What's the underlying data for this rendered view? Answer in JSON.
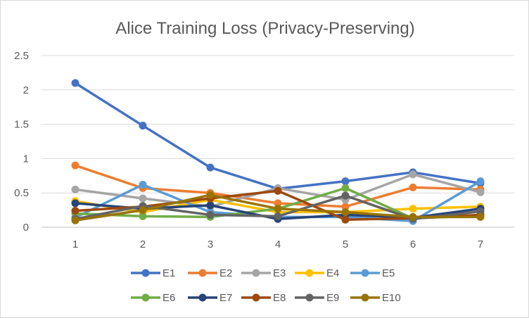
{
  "chart_data": {
    "type": "line",
    "title": "Alice Training Loss (Privacy-Preserving)",
    "xlabel": "",
    "ylabel": "",
    "x": [
      1,
      2,
      3,
      4,
      5,
      6,
      7
    ],
    "ylim": [
      0,
      2.5
    ],
    "yticks": [
      "0",
      "0.5",
      "1",
      "1.5",
      "2",
      "2.5"
    ],
    "grid": true,
    "legend_position": "bottom",
    "series": [
      {
        "name": "E1",
        "color": "#4472C4",
        "values": [
          2.1,
          1.48,
          0.87,
          0.56,
          0.67,
          0.8,
          0.64
        ]
      },
      {
        "name": "E2",
        "color": "#ED7D31",
        "values": [
          0.9,
          0.57,
          0.5,
          0.35,
          0.3,
          0.58,
          0.55
        ]
      },
      {
        "name": "E3",
        "color": "#A5A5A5",
        "values": [
          0.55,
          0.42,
          0.3,
          0.57,
          0.4,
          0.77,
          0.51
        ]
      },
      {
        "name": "E4",
        "color": "#FFC000",
        "values": [
          0.38,
          0.22,
          0.4,
          0.22,
          0.22,
          0.27,
          0.3
        ]
      },
      {
        "name": "E5",
        "color": "#5B9BD5",
        "values": [
          0.14,
          0.62,
          0.22,
          0.15,
          0.15,
          0.09,
          0.67
        ]
      },
      {
        "name": "E6",
        "color": "#70AD47",
        "values": [
          0.2,
          0.16,
          0.15,
          0.27,
          0.57,
          0.13,
          0.17
        ]
      },
      {
        "name": "E7",
        "color": "#264478",
        "values": [
          0.35,
          0.27,
          0.32,
          0.12,
          0.18,
          0.14,
          0.27
        ]
      },
      {
        "name": "E8",
        "color": "#9E480E",
        "values": [
          0.24,
          0.3,
          0.42,
          0.53,
          0.11,
          0.13,
          0.18
        ]
      },
      {
        "name": "E9",
        "color": "#636363",
        "values": [
          0.12,
          0.31,
          0.18,
          0.16,
          0.46,
          0.12,
          0.23
        ]
      },
      {
        "name": "E10",
        "color": "#997300",
        "values": [
          0.1,
          0.25,
          0.47,
          0.27,
          0.22,
          0.15,
          0.15
        ]
      }
    ]
  }
}
